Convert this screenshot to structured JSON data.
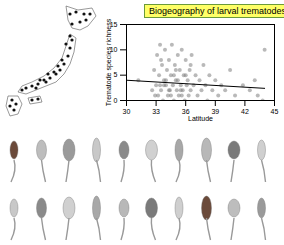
{
  "chart_data": {
    "type": "scatter",
    "title": "Biogeography of larval trematodes",
    "x_label": "Latitude",
    "y_label": "Trematode species richness",
    "x": [
      31.2,
      32.6,
      32.8,
      33.0,
      33.1,
      33.2,
      33.3,
      33.4,
      33.5,
      33.6,
      33.7,
      33.8,
      33.9,
      34.0,
      34.1,
      34.2,
      34.3,
      34.4,
      34.5,
      34.6,
      34.7,
      34.8,
      34.9,
      35.0,
      35.1,
      35.2,
      35.3,
      35.4,
      35.5,
      35.6,
      35.7,
      35.8,
      35.9,
      36.0,
      36.1,
      36.2,
      36.3,
      36.4,
      36.5,
      36.6,
      36.8,
      37.0,
      37.2,
      37.4,
      37.6,
      37.8,
      38.0,
      38.2,
      38.4,
      38.7,
      39.0,
      39.3,
      39.6,
      40.0,
      40.5,
      41.0,
      41.8,
      42.5,
      43.0,
      43.3,
      43.8,
      44.0,
      33.5,
      34.0,
      34.5,
      35.0,
      35.5,
      36.0,
      33.8,
      34.3,
      35.2,
      36.5,
      32.9,
      33.4,
      34.8,
      35.6
    ],
    "values": [
      4,
      2,
      6,
      3,
      9,
      1,
      5,
      11,
      2,
      7,
      0,
      4,
      10,
      3,
      6,
      1,
      8,
      2,
      5,
      11,
      3,
      0,
      7,
      4,
      2,
      9,
      1,
      6,
      3,
      10,
      2,
      5,
      0,
      8,
      3,
      4,
      1,
      6,
      2,
      9,
      3,
      5,
      1,
      4,
      2,
      7,
      3,
      0,
      5,
      2,
      4,
      1,
      3,
      2,
      6,
      1,
      3,
      2,
      4,
      1,
      0,
      10,
      8,
      4,
      1,
      6,
      2,
      5,
      3,
      2,
      4,
      7,
      1,
      3,
      5,
      1
    ],
    "color": "#7f7f7f",
    "trend": {
      "x": [
        30,
        44
      ],
      "values": [
        4.0,
        2.4
      ],
      "color": "#000000"
    },
    "xlim": [
      30,
      45
    ],
    "xticks": [
      30,
      33,
      36,
      39,
      42,
      45
    ],
    "ylim": [
      0,
      15
    ],
    "yticks": [
      0,
      5,
      10,
      15
    ],
    "grid": false
  }
}
